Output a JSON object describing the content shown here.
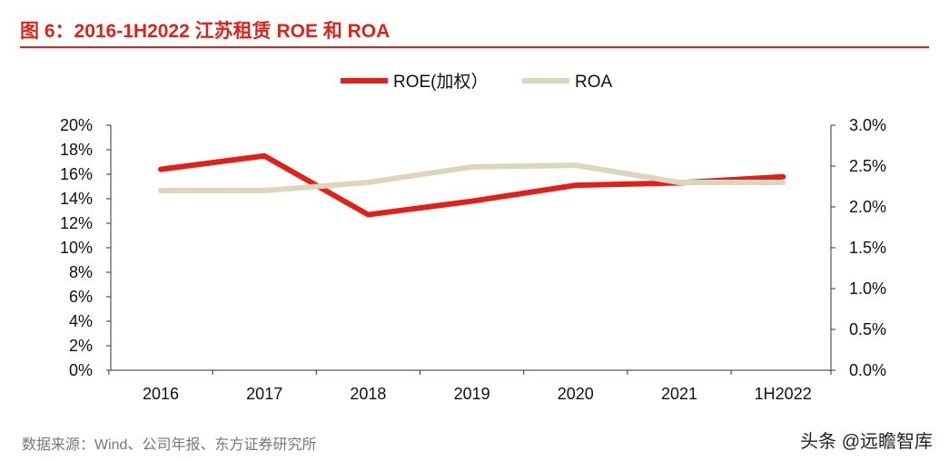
{
  "title": "图 6：2016-1H2022 江苏租赁 ROE 和 ROA",
  "source": "数据来源：Wind、公司年报、东方证券研究所",
  "watermark": "头条 @远瞻智库",
  "chart_data": {
    "type": "line",
    "categories": [
      "2016",
      "2017",
      "2018",
      "2019",
      "2020",
      "2021",
      "1H2022"
    ],
    "series": [
      {
        "name": "ROE(加权）",
        "axis": "left",
        "color": "#e0211b",
        "values": [
          16.4,
          17.5,
          12.7,
          13.8,
          15.1,
          15.3,
          15.8
        ]
      },
      {
        "name": "ROA",
        "axis": "right",
        "color": "#ddd5be",
        "values": [
          2.2,
          2.2,
          2.3,
          2.49,
          2.51,
          2.3,
          2.3
        ]
      }
    ],
    "y_left": {
      "range": [
        0,
        20
      ],
      "ticks": [
        "0%",
        "2%",
        "4%",
        "6%",
        "8%",
        "10%",
        "12%",
        "14%",
        "16%",
        "18%",
        "20%"
      ]
    },
    "y_right": {
      "range": [
        0,
        3
      ],
      "ticks": [
        "0.0%",
        "0.5%",
        "1.0%",
        "1.5%",
        "2.0%",
        "2.5%",
        "3.0%"
      ]
    },
    "legend_position": "top",
    "grid": false
  }
}
